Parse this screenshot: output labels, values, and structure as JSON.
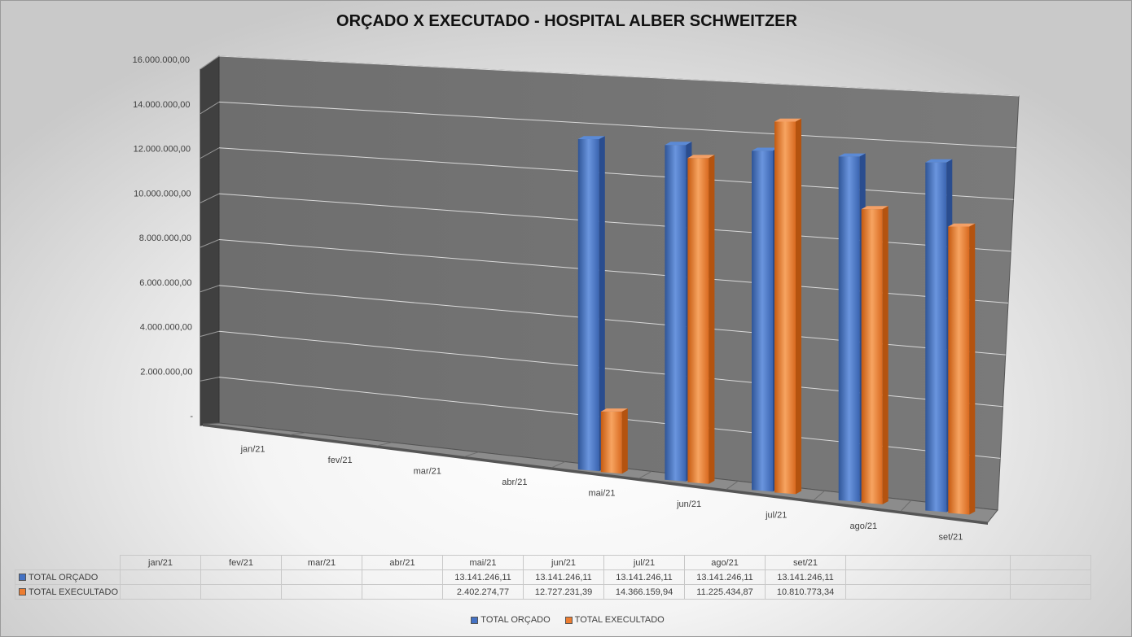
{
  "chart_data": {
    "type": "bar",
    "title": "ORÇADO X EXECUTADO - HOSPITAL ALBER SCHWEITZER",
    "categories": [
      "jan/21",
      "fev/21",
      "mar/21",
      "abr/21",
      "mai/21",
      "jun/21",
      "jul/21",
      "ago/21",
      "set/21"
    ],
    "series": [
      {
        "name": "TOTAL ORÇADO",
        "color": "#4472c4",
        "values": [
          null,
          null,
          null,
          null,
          13141246.11,
          13141246.11,
          13141246.11,
          13141246.11,
          13141246.11
        ],
        "labels": [
          "",
          "",
          "",
          "",
          "13.141.246,11",
          "13.141.246,11",
          "13.141.246,11",
          "13.141.246,11",
          "13.141.246,11"
        ]
      },
      {
        "name": "TOTAL EXECULTADO",
        "color": "#ed7d31",
        "values": [
          null,
          null,
          null,
          null,
          2402274.77,
          12727231.39,
          14366159.94,
          11225434.87,
          10810773.34
        ],
        "labels": [
          "",
          "",
          "",
          "",
          "2.402.274,77",
          "12.727.231,39",
          "14.366.159,94",
          "11.225.434,87",
          "10.810.773,34"
        ]
      }
    ],
    "ylim": [
      0,
      16000000
    ],
    "yticks": [
      0,
      2000000,
      4000000,
      6000000,
      8000000,
      10000000,
      12000000,
      14000000,
      16000000
    ],
    "ytick_labels": [
      "-",
      "2.000.000,00",
      "4.000.000,00",
      "6.000.000,00",
      "8.000.000,00",
      "10.000.000,00",
      "12.000.000,00",
      "14.000.000,00",
      "16.000.000,00"
    ],
    "grid": true,
    "style": "3d-clustered-column",
    "legend_position": "bottom",
    "data_table": true
  }
}
